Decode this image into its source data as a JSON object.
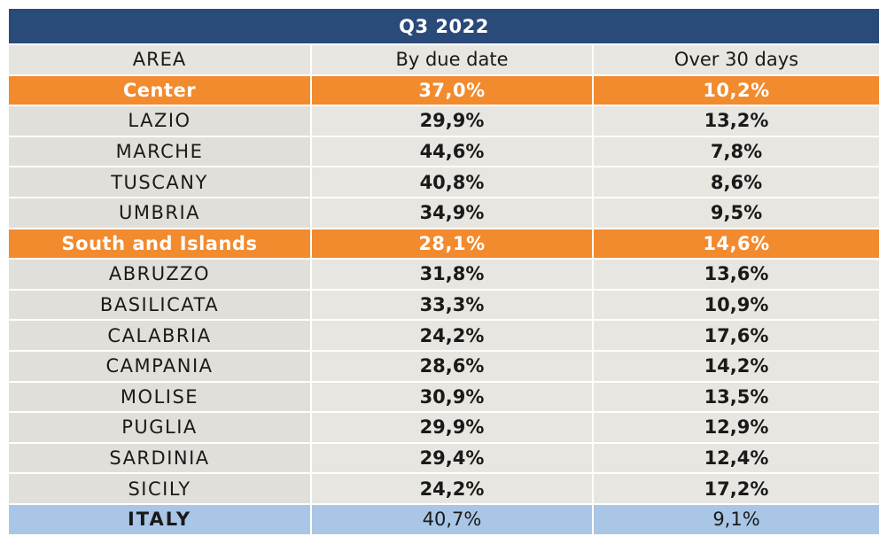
{
  "chart_data": {
    "type": "table",
    "title": "Q3 2022",
    "columns": [
      "AREA",
      "By due date",
      "Over 30 days"
    ],
    "rows": [
      {
        "kind": "macro",
        "area": "Center",
        "due": "37,0%",
        "over30": "10,2%"
      },
      {
        "kind": "region",
        "area": "LAZIO",
        "due": "29,9%",
        "over30": "13,2%"
      },
      {
        "kind": "region",
        "area": "MARCHE",
        "due": "44,6%",
        "over30": "7,8%"
      },
      {
        "kind": "region",
        "area": "TUSCANY",
        "due": "40,8%",
        "over30": "8,6%"
      },
      {
        "kind": "region",
        "area": "UMBRIA",
        "due": "34,9%",
        "over30": "9,5%"
      },
      {
        "kind": "macro",
        "area": "South and Islands",
        "due": "28,1%",
        "over30": "14,6%"
      },
      {
        "kind": "region",
        "area": "ABRUZZO",
        "due": "31,8%",
        "over30": "13,6%"
      },
      {
        "kind": "region",
        "area": "BASILICATA",
        "due": "33,3%",
        "over30": "10,9%"
      },
      {
        "kind": "region",
        "area": "CALABRIA",
        "due": "24,2%",
        "over30": "17,6%"
      },
      {
        "kind": "region",
        "area": "CAMPANIA",
        "due": "28,6%",
        "over30": "14,2%"
      },
      {
        "kind": "region",
        "area": "MOLISE",
        "due": "30,9%",
        "over30": "13,5%"
      },
      {
        "kind": "region",
        "area": "PUGLIA",
        "due": "29,9%",
        "over30": "12,9%"
      },
      {
        "kind": "region",
        "area": "SARDINIA",
        "due": "29,4%",
        "over30": "12,4%"
      },
      {
        "kind": "region",
        "area": "SICILY",
        "due": "24,2%",
        "over30": "17,2%"
      },
      {
        "kind": "total",
        "area": "ITALY",
        "due": "40,7%",
        "over30": "9,1%"
      }
    ]
  },
  "colors": {
    "title_bg": "#2a4a7a",
    "macro_bg": "#f28a2e",
    "total_bg": "#a9c6e6",
    "cell_bg": "#e8e6e1"
  }
}
